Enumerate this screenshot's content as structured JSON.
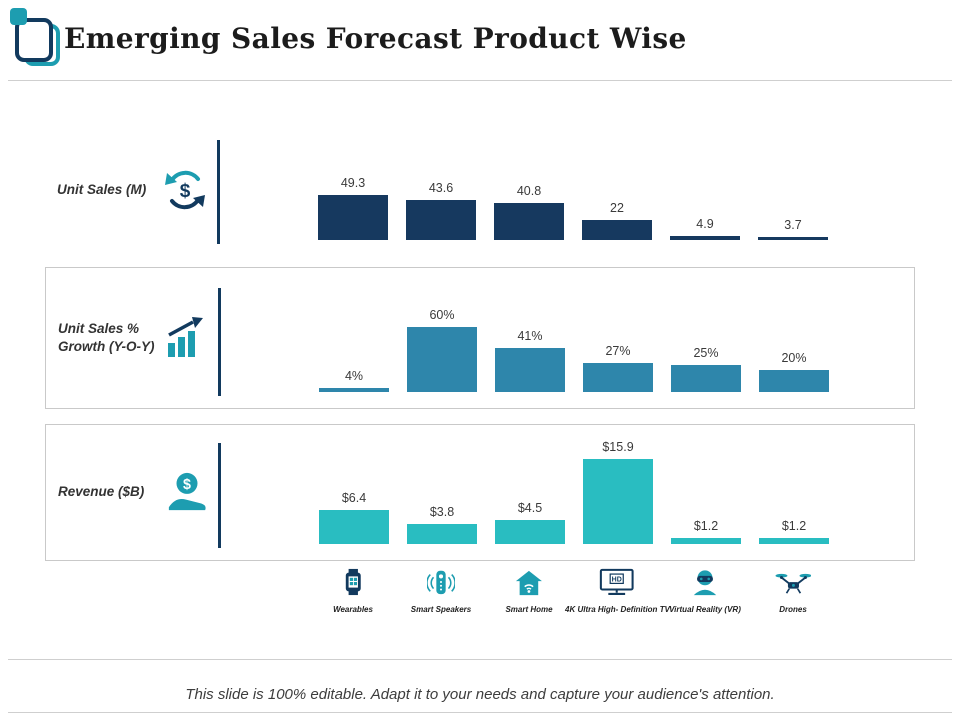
{
  "slide": {
    "title": "Emerging Sales Forecast Product Wise",
    "footer": "This slide is 100% editable. Adapt it to your needs and capture your audience's attention."
  },
  "glyphs": {
    "dollar": "$",
    "hd": "HD"
  },
  "colors": {
    "accent_teal": "#1d9db0",
    "dark_navy": "#123a5e",
    "row1_bar": "#16395f",
    "row2_bar": "#2e86ab",
    "row3_bar": "#29bdc1"
  },
  "categories": [
    {
      "label": "Wearables",
      "icon": "smartwatch-icon"
    },
    {
      "label": "Smart Speakers",
      "icon": "smart-speaker-icon"
    },
    {
      "label": "Smart Home",
      "icon": "smart-home-icon"
    },
    {
      "label": "4K Ultra High- Definition TV",
      "icon": "tv-4k-icon"
    },
    {
      "label": "Virtual Reality (VR)",
      "icon": "vr-headset-icon"
    },
    {
      "label": "Drones",
      "icon": "drone-icon"
    }
  ],
  "chart_data": [
    {
      "type": "bar",
      "title": "Unit Sales (M)",
      "icon": "currency-cycle-icon",
      "categories": [
        "Wearables",
        "Smart Speakers",
        "Smart Home",
        "4K Ultra High- Definition TV",
        "Virtual Reality (VR)",
        "Drones"
      ],
      "values": [
        49.3,
        43.6,
        40.8,
        22,
        4.9,
        3.7
      ],
      "value_labels": [
        "49.3",
        "43.6",
        "40.8",
        "22",
        "4.9",
        "3.7"
      ],
      "bar_color": "#16395f",
      "legend_position": "none",
      "grid": false
    },
    {
      "type": "bar",
      "title": "Unit Sales % Growth (Y-O-Y)",
      "icon": "growth-chart-icon",
      "categories": [
        "Wearables",
        "Smart Speakers",
        "Smart Home",
        "4K Ultra High- Definition TV",
        "Virtual Reality (VR)",
        "Drones"
      ],
      "values": [
        4,
        60,
        41,
        27,
        25,
        20
      ],
      "value_labels": [
        "4%",
        "60%",
        "41%",
        "27%",
        "25%",
        "20%"
      ],
      "bar_color": "#2e86ab",
      "legend_position": "none",
      "grid": false
    },
    {
      "type": "bar",
      "title": "Revenue ($B)",
      "icon": "hand-dollar-icon",
      "categories": [
        "Wearables",
        "Smart Speakers",
        "Smart Home",
        "4K Ultra High- Definition TV",
        "Virtual Reality (VR)",
        "Drones"
      ],
      "values": [
        6.4,
        3.8,
        4.5,
        15.9,
        1.2,
        1.2
      ],
      "value_labels": [
        "$6.4",
        "$3.8",
        "$4.5",
        "$15.9",
        "$1.2",
        "$1.2"
      ],
      "bar_color": "#29bdc1",
      "legend_position": "none",
      "grid": false
    }
  ]
}
